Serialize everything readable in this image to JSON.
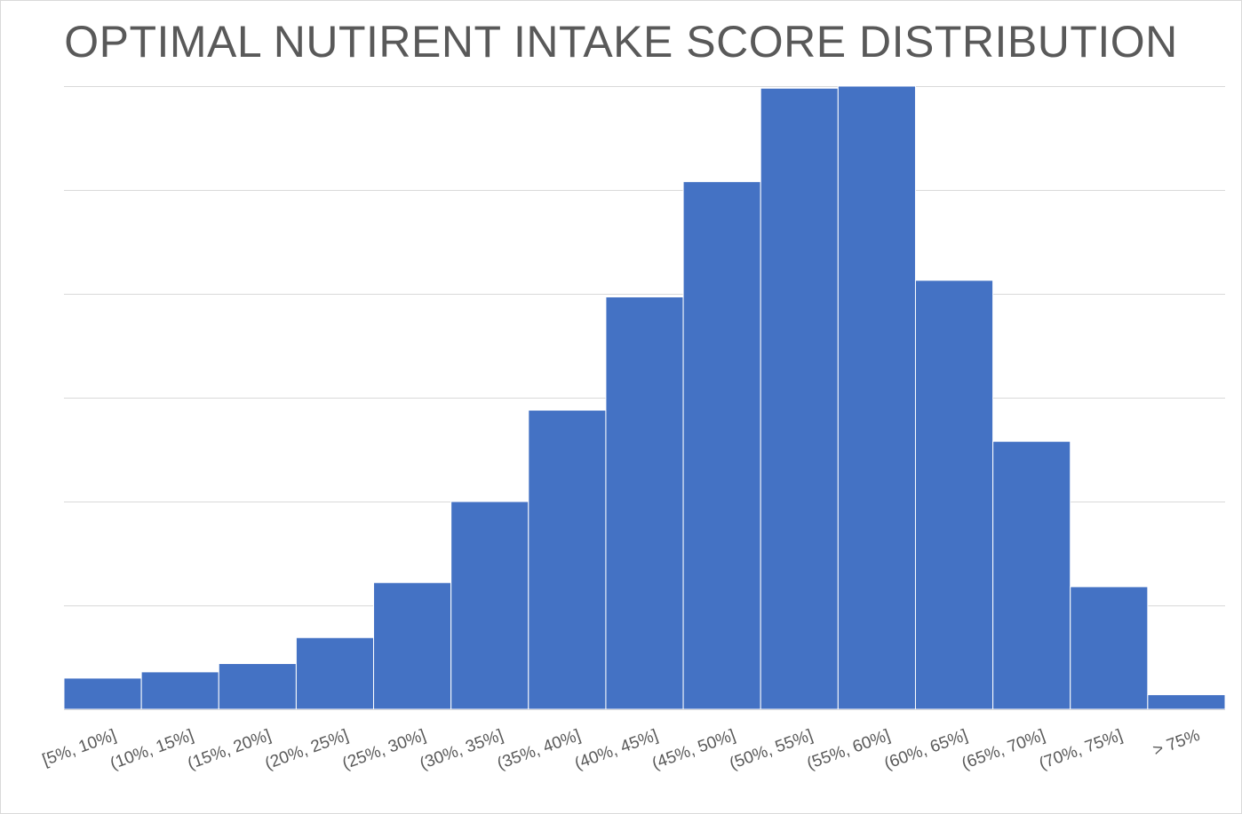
{
  "chart_data": {
    "type": "bar",
    "title": "OPTIMAL NUTIRENT INTAKE SCORE DISTRIBUTION",
    "xlabel": "",
    "ylabel": "",
    "categories": [
      "[5%, 10%]",
      "(10%, 15%]",
      "(15%, 20%]",
      "(20%, 25%]",
      "(25%, 30%]",
      "(30%, 35%]",
      "(35%, 40%]",
      "(40%, 45%]",
      "(45%, 50%]",
      "(50%, 55%]",
      "(55%, 60%]",
      "(60%, 65%]",
      "(65%, 70%]",
      "(70%, 75%]",
      "> 75%"
    ],
    "values": [
      3.0,
      3.6,
      4.4,
      6.9,
      12.2,
      20.0,
      28.8,
      39.7,
      50.8,
      59.8,
      60.0,
      41.3,
      25.8,
      11.8,
      1.4
    ],
    "ylim": [
      0,
      60
    ],
    "grid": true,
    "y_tick_labels_visible": false,
    "legend": "none",
    "bar_gap": 0,
    "colors": {
      "bar": "#4472C4",
      "bar_edge": "#ffffff",
      "grid": "#d9d9d9",
      "text": "#595959"
    }
  }
}
